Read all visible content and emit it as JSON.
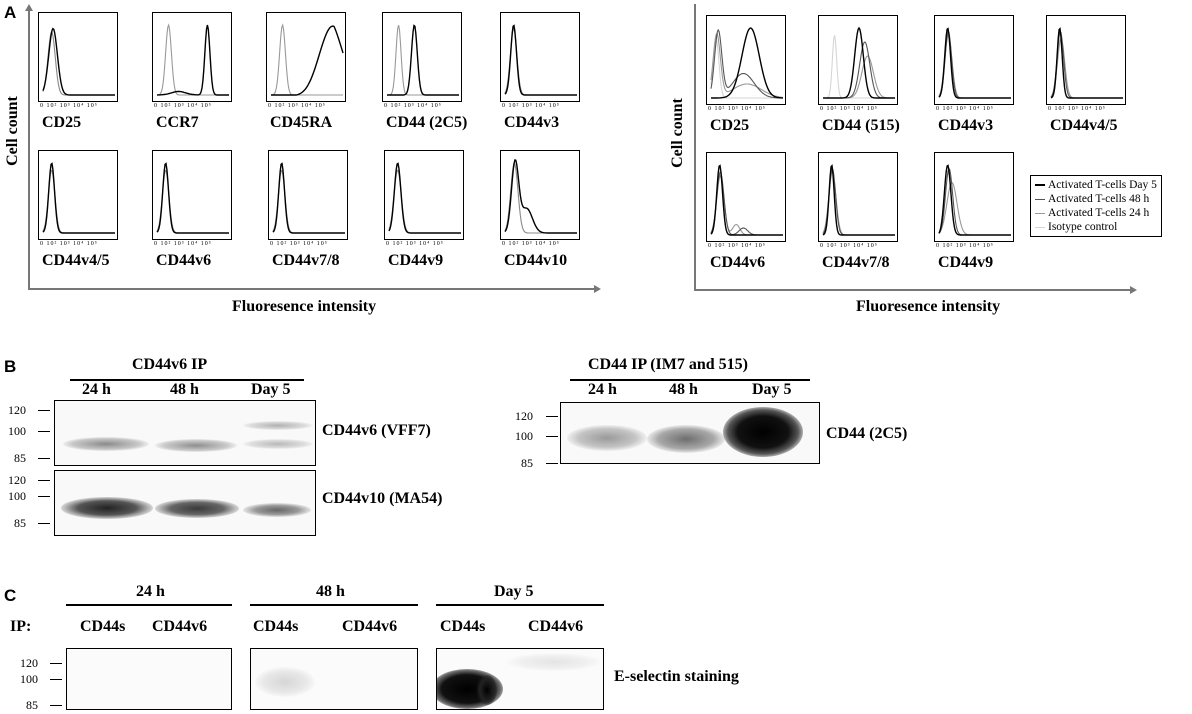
{
  "panels": {
    "a": "A",
    "b": "B",
    "c": "C"
  },
  "panel_a_left": {
    "ylabel": "Cell count",
    "xlabel": "Fluoresence intensity",
    "ticks": "0 10² 10³ 10⁴ 10⁵",
    "markers": [
      "CD25",
      "CCR7",
      "CD45RA",
      "CD44 (2C5)",
      "CD44v3",
      "CD44v4/5",
      "CD44v6",
      "CD44v7/8",
      "CD44v9",
      "CD44v10"
    ]
  },
  "panel_a_right": {
    "ylabel": "Cell count",
    "xlabel": "Fluoresence intensity",
    "ticks": "0 10² 10³ 10⁴ 10⁵",
    "markers": [
      "CD25",
      "CD44 (515)",
      "CD44v3",
      "CD44v4/5",
      "CD44v6",
      "CD44v7/8",
      "CD44v9"
    ],
    "legend": [
      {
        "label": "Activated T-cells Day 5",
        "color": "#000000"
      },
      {
        "label": "Activated T-cells 48 h",
        "color": "#555555"
      },
      {
        "label": "Activated T-cells 24 h",
        "color": "#999999"
      },
      {
        "label": "Isotype control",
        "color": "#d6d6d6"
      }
    ]
  },
  "panel_b_left": {
    "title": "CD44v6 IP",
    "lanes": [
      "24 h",
      "48 h",
      "Day 5"
    ],
    "blot1_label": "CD44v6 (VFF7)",
    "blot2_label": "CD44v10 (MA54)",
    "mw": [
      "120",
      "100",
      "85"
    ]
  },
  "panel_b_right": {
    "title": "CD44 IP (IM7 and 515)",
    "lanes": [
      "24 h",
      "48 h",
      "Day 5"
    ],
    "blot_label": "CD44 (2C5)",
    "mw": [
      "120",
      "100",
      "85"
    ]
  },
  "panel_c": {
    "ip_label": "IP:",
    "timepoints": [
      "24 h",
      "48 h",
      "Day 5"
    ],
    "lanes": [
      "CD44s",
      "CD44v6"
    ],
    "mw": [
      "120",
      "100",
      "85"
    ],
    "stain_label": "E-selectin staining"
  }
}
